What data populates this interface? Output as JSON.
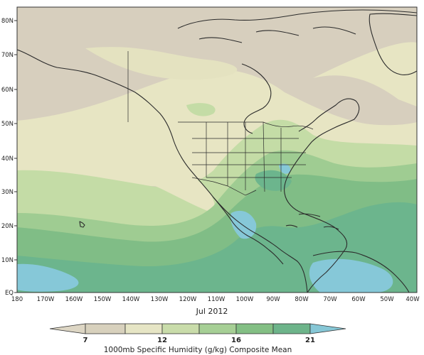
{
  "map": {
    "date": "Jul 2012",
    "caption": "1000mb Specific Humidity (g/kg) Composite Mean",
    "lon_labels": [
      "180",
      "170W",
      "160W",
      "150W",
      "140W",
      "130W",
      "120W",
      "110W",
      "100W",
      "90W",
      "80W",
      "70W",
      "60W",
      "50W",
      "40W"
    ],
    "lat_labels": [
      "EQ",
      "10N",
      "20N",
      "30N",
      "40N",
      "50N",
      "60N",
      "70N",
      "80N"
    ],
    "colorbar": {
      "labels": [
        "7",
        "12",
        "16",
        "21"
      ],
      "colors": [
        "#ddd6c4",
        "#d8d1bd",
        "#e6e5c5",
        "#c9dcaa",
        "#a6cf95",
        "#83bf84",
        "#6db48a",
        "#86c7d6"
      ]
    },
    "palette": {
      "tan": "#d7cfbe",
      "cream": "#e7e5c3",
      "light_green": "#c4dca6",
      "mid_green": "#9fcc92",
      "green": "#80bd86",
      "teal": "#6cb58d",
      "cyan": "#86c8d8"
    }
  }
}
